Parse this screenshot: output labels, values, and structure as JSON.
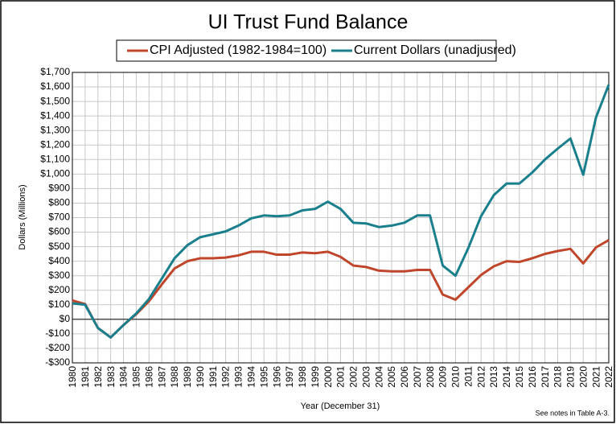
{
  "chart_data": {
    "type": "line",
    "title": "UI Trust Fund Balance",
    "y_label": "Dollars (Millions)",
    "x_label": "Year (December 31)",
    "note": "See notes  in Table A-3.",
    "categories": [
      "1980",
      "1981",
      "1982",
      "1983",
      "1984",
      "1985",
      "1986",
      "1987",
      "1988",
      "1989",
      "1990",
      "1991",
      "1992",
      "1993",
      "1994",
      "1995",
      "1996",
      "1997",
      "1998",
      "1999",
      "2000",
      "2001",
      "2002",
      "2003",
      "2004",
      "2005",
      "2006",
      "2007",
      "2008",
      "2009",
      "2010",
      "2011",
      "2012",
      "2013",
      "2014",
      "2015",
      "2016",
      "2017",
      "2018",
      "2019",
      "2020",
      "2021",
      "2022"
    ],
    "series": [
      {
        "name": "CPI Adjusted (1982-1984=100)",
        "color": "#c0462b",
        "values": [
          130,
          105,
          -60,
          -125,
          -40,
          35,
          125,
          240,
          350,
          400,
          420,
          420,
          425,
          440,
          465,
          465,
          445,
          445,
          460,
          455,
          465,
          430,
          370,
          360,
          335,
          330,
          330,
          340,
          340,
          170,
          135,
          220,
          305,
          365,
          400,
          395,
          420,
          450,
          470,
          485,
          385,
          495,
          545
        ]
      },
      {
        "name": "Current Dollars (unadjusred)",
        "color": "#1a7f8c",
        "values": [
          110,
          100,
          -60,
          -125,
          -40,
          40,
          140,
          280,
          420,
          510,
          565,
          585,
          605,
          645,
          695,
          715,
          710,
          715,
          750,
          760,
          810,
          760,
          665,
          660,
          635,
          645,
          665,
          715,
          715,
          370,
          300,
          490,
          710,
          855,
          935,
          935,
          1010,
          1100,
          1175,
          1245,
          995,
          1390,
          1615
        ]
      }
    ],
    "ylim": [
      -300,
      1700
    ],
    "yticks": [
      {
        "value": -300,
        "label": "-$300"
      },
      {
        "value": -200,
        "label": "-$200"
      },
      {
        "value": -100,
        "label": "-$100"
      },
      {
        "value": 0,
        "label": "$0"
      },
      {
        "value": 100,
        "label": "$100"
      },
      {
        "value": 200,
        "label": "$200"
      },
      {
        "value": 300,
        "label": "$300"
      },
      {
        "value": 400,
        "label": "$400"
      },
      {
        "value": 500,
        "label": "$500"
      },
      {
        "value": 600,
        "label": "$600"
      },
      {
        "value": 700,
        "label": "$700"
      },
      {
        "value": 800,
        "label": "$800"
      },
      {
        "value": 900,
        "label": "$900"
      },
      {
        "value": 1000,
        "label": "$1,000"
      },
      {
        "value": 1100,
        "label": "$1,100"
      },
      {
        "value": 1200,
        "label": "$1,200"
      },
      {
        "value": 1300,
        "label": "$1,300"
      },
      {
        "value": 1400,
        "label": "$1,400"
      },
      {
        "value": 1500,
        "label": "$1,500"
      },
      {
        "value": 1600,
        "label": "$1,600"
      },
      {
        "value": 1700,
        "label": "$1,700"
      }
    ],
    "grid": true
  }
}
